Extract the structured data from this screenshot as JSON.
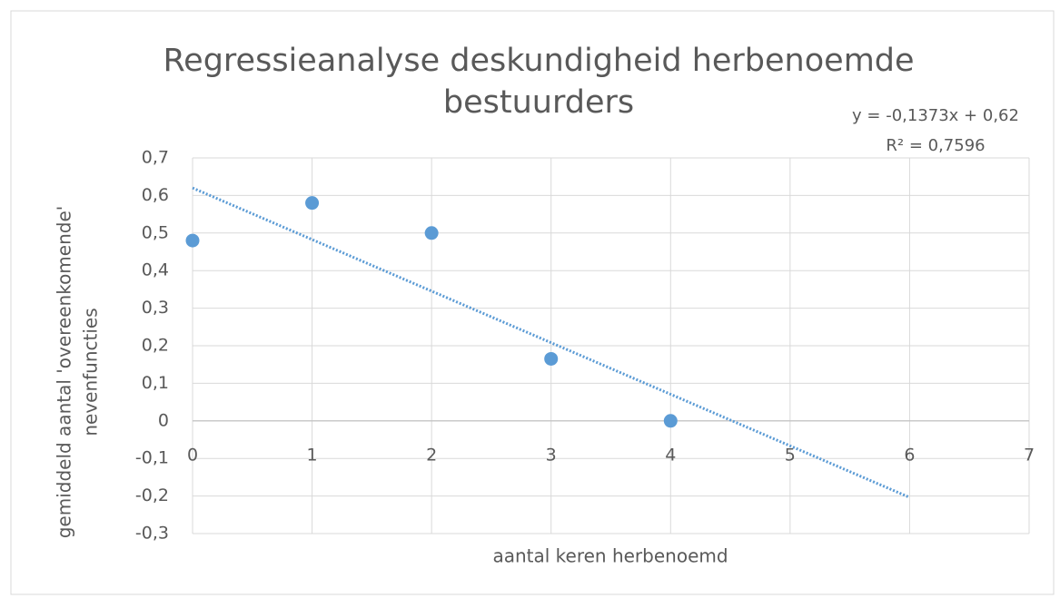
{
  "chart_data": {
    "type": "scatter",
    "title": [
      "Regressieanalyse deskundigheid herbenoemde",
      "bestuurders"
    ],
    "x_label": "aantal keren herbenoemd",
    "y_label": [
      "gemiddeld aantal 'overeenkomende'",
      "nevenfuncties"
    ],
    "x": [
      0,
      1,
      2,
      3,
      4
    ],
    "series": [
      {
        "name": "gemiddeld aantal 'overeenkomende' nevenfuncties",
        "color": "#5b9bd5",
        "values": [
          0.48,
          0.58,
          0.5,
          0.165,
          0
        ]
      }
    ],
    "trendline": {
      "x": [
        0,
        6
      ],
      "values": [
        0.62,
        -0.2038
      ],
      "color": "#5b9bd5",
      "equation": "y = -0,1373x + 0,62",
      "r2": "R² = 0,7596"
    },
    "xlim": [
      0,
      7
    ],
    "ylim": [
      -0.3,
      0.7
    ],
    "xticks": [
      0,
      1,
      2,
      3,
      4,
      5,
      6,
      7
    ],
    "yticks": [
      {
        "value": -0.3,
        "label": "-0,3"
      },
      {
        "value": -0.2,
        "label": "-0,2"
      },
      {
        "value": -0.1,
        "label": "-0,1"
      },
      0,
      {
        "value": 0.1,
        "label": "0,1"
      },
      {
        "value": 0.2,
        "label": "0,2"
      },
      {
        "value": 0.3,
        "label": "0,3"
      },
      {
        "value": 0.4,
        "label": "0,4"
      },
      {
        "value": 0.5,
        "label": "0,5"
      },
      {
        "value": 0.6,
        "label": "0,6"
      },
      {
        "value": 0.7,
        "label": "0,7"
      }
    ],
    "grid": true
  }
}
